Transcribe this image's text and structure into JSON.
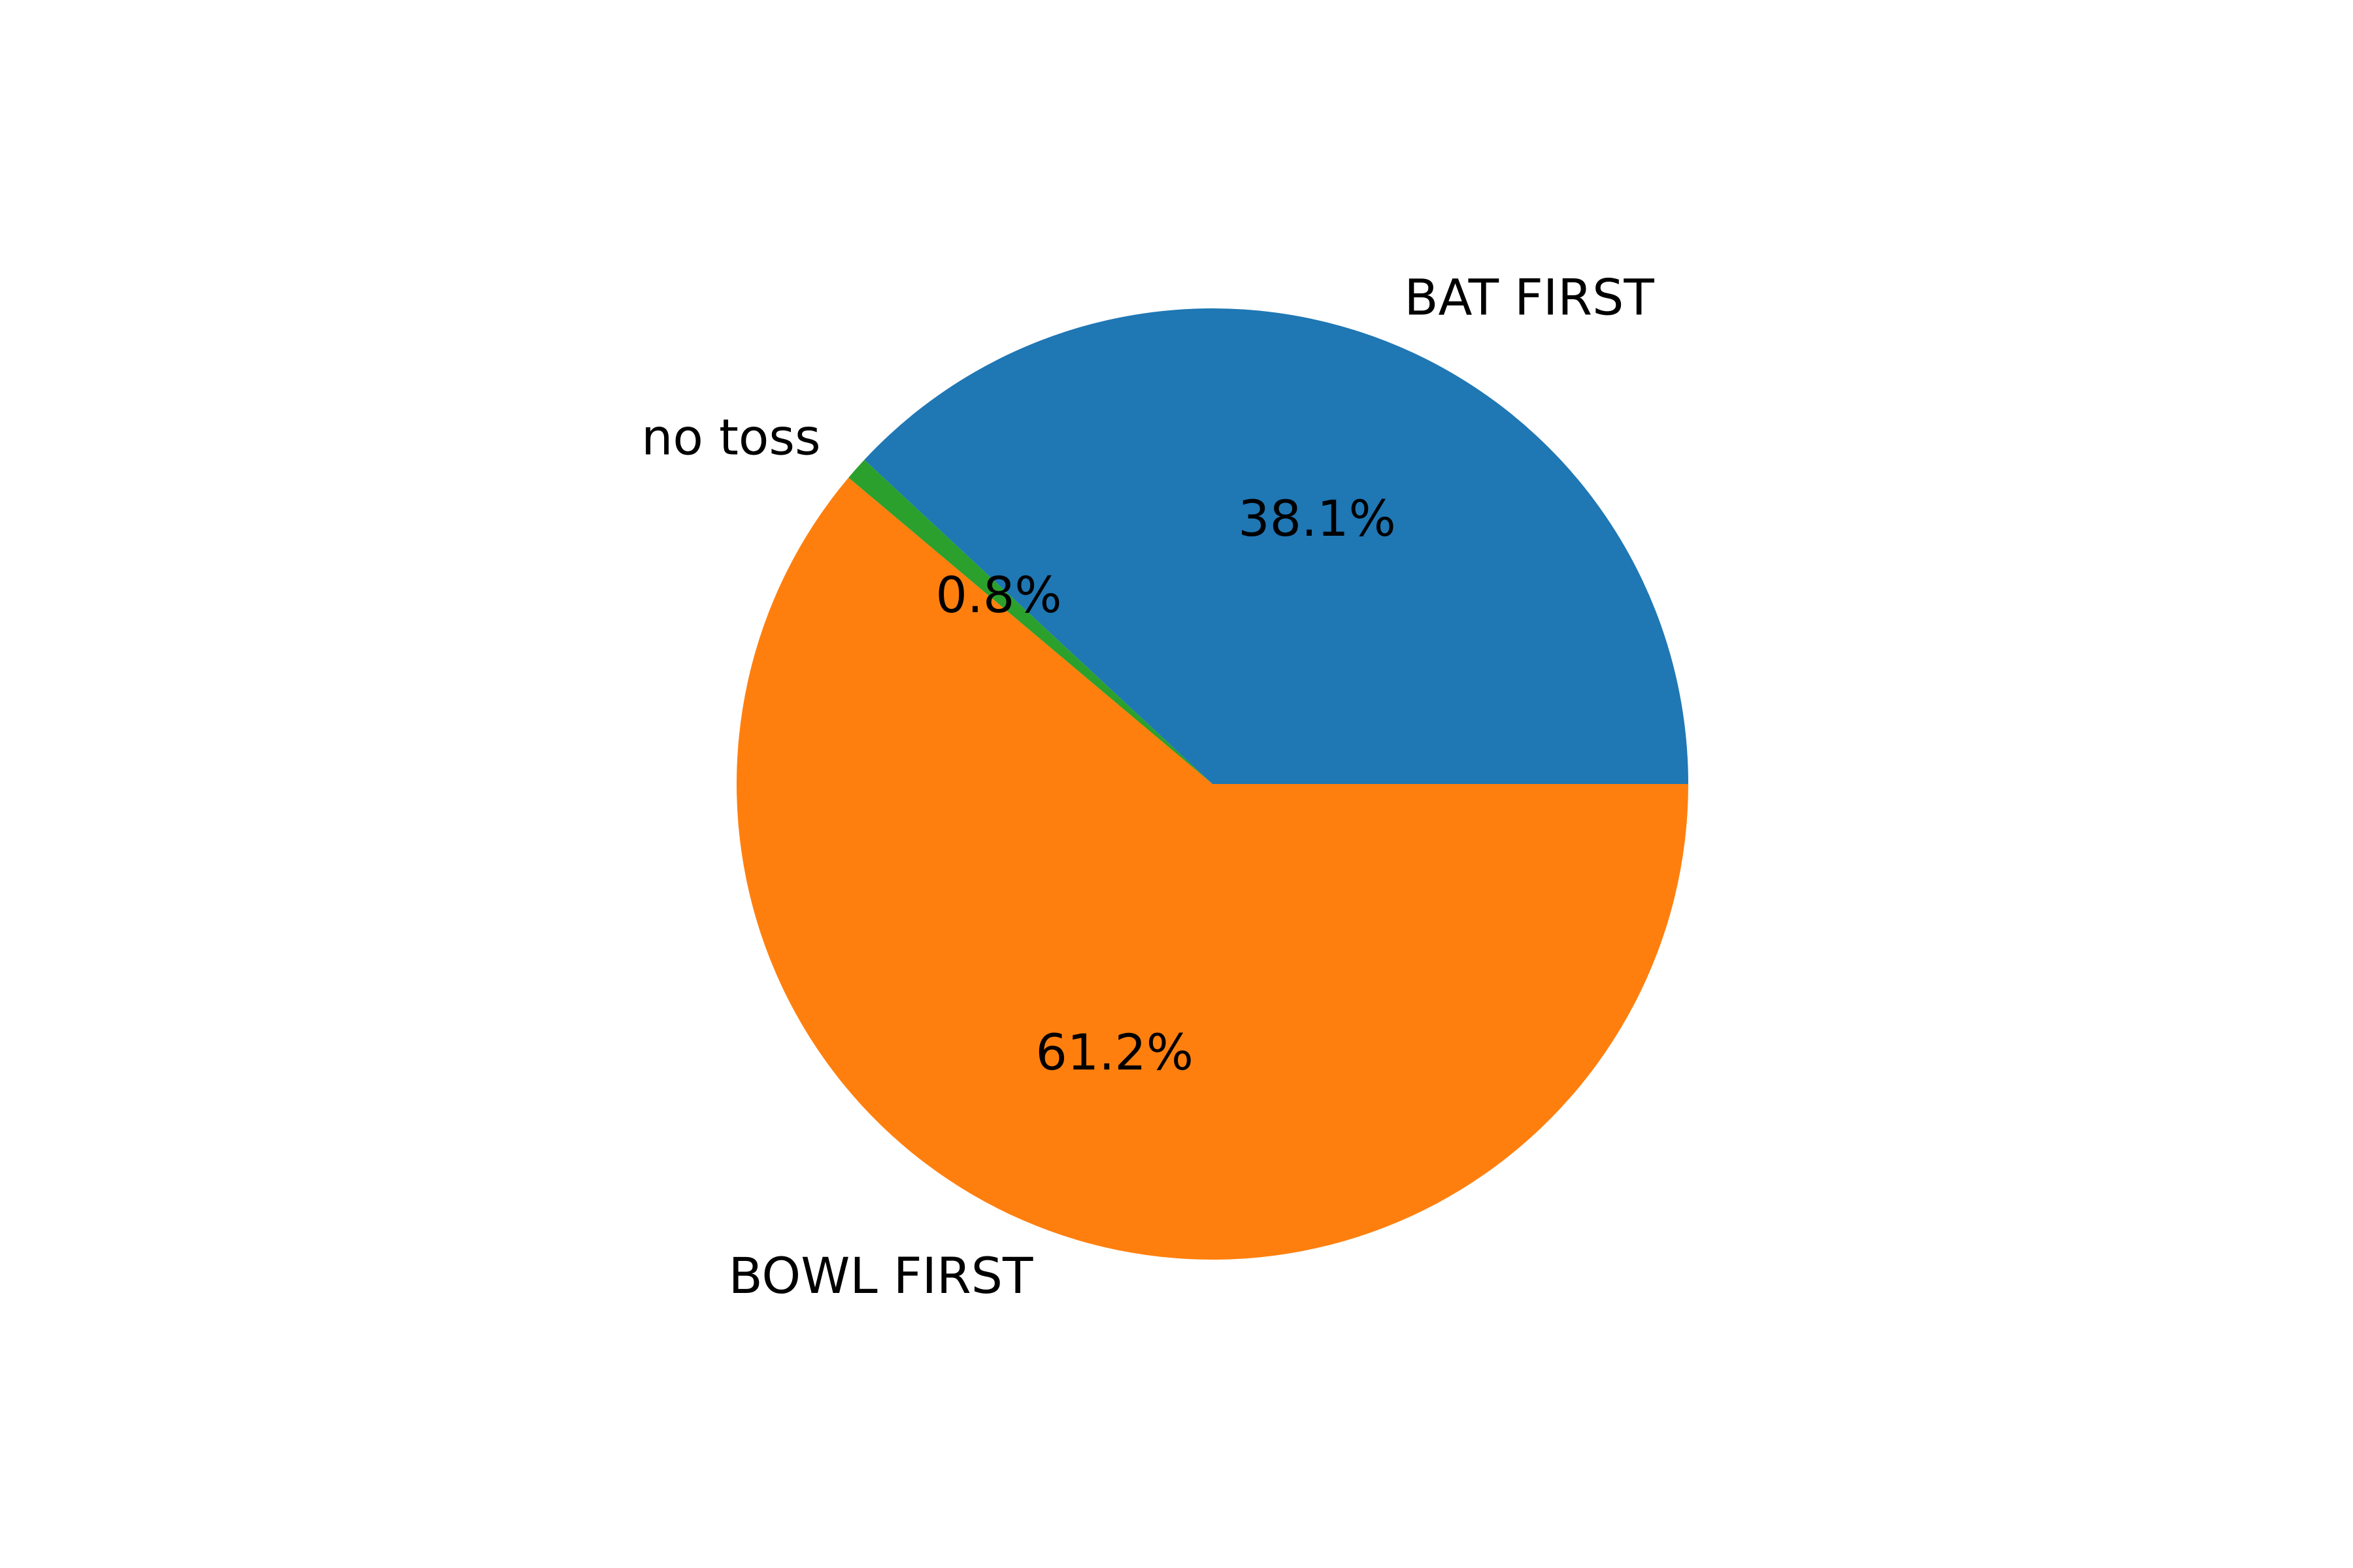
{
  "chart_data": {
    "type": "pie",
    "title": "",
    "slices": [
      {
        "label": "BAT FIRST",
        "value": 38.1,
        "pct_label": "38.1%",
        "color": "#1f77b4"
      },
      {
        "label": "no toss",
        "value": 0.8,
        "pct_label": "0.8%",
        "color": "#2ca02c"
      },
      {
        "label": "BOWL FIRST",
        "value": 61.2,
        "pct_label": "61.2%",
        "color": "#ff7f0e"
      }
    ],
    "start_angle_deg": 0,
    "direction": "counterclockwise",
    "legend": "none"
  }
}
